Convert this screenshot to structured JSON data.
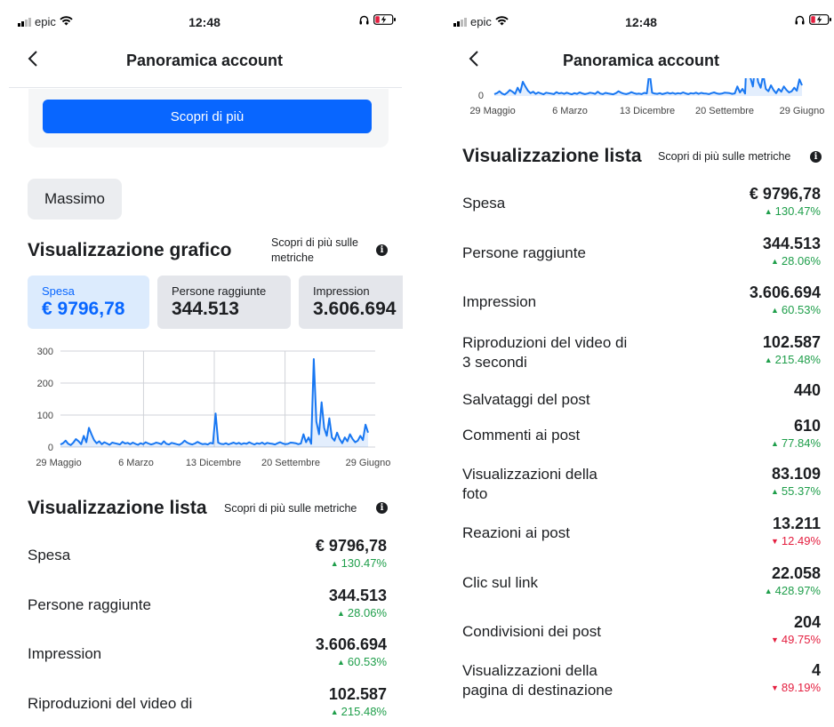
{
  "status": {
    "carrier": "epic",
    "time": "12:48"
  },
  "nav": {
    "title": "Panoramica account"
  },
  "cta": {
    "label": "Scopri di più"
  },
  "filter_chip": "Massimo",
  "graph_section": {
    "title": "Visualizzazione grafico",
    "metrics_link": "Scopri di più sulle metriche",
    "tabs": [
      {
        "label": "Spesa",
        "value": "€ 9796,78"
      },
      {
        "label": "Persone raggiunte",
        "value": "344.513"
      },
      {
        "label": "Impression",
        "value": "3.606.694"
      }
    ]
  },
  "list_section": {
    "title": "Visualizzazione lista",
    "metrics_link": "Scopri di più sulle metriche"
  },
  "metrics": [
    {
      "label": "Spesa",
      "value": "€ 9796,78",
      "delta": "130.47%",
      "trend": "up"
    },
    {
      "label": "Persone raggiunte",
      "value": "344.513",
      "delta": "28.06%",
      "trend": "up"
    },
    {
      "label": "Impression",
      "value": "3.606.694",
      "delta": "60.53%",
      "trend": "up"
    },
    {
      "label": "Riproduzioni del video di 3 secondi",
      "label_line1": "Riproduzioni del video di",
      "label_line2": "3 secondi",
      "value": "102.587",
      "delta": "215.48%",
      "trend": "up"
    },
    {
      "label": "Salvataggi del post",
      "value": "440",
      "delta": "",
      "trend": "none"
    },
    {
      "label": "Commenti ai post",
      "value": "610",
      "delta": "77.84%",
      "trend": "up"
    },
    {
      "label": "Visualizzazioni della foto",
      "label_line1": "Visualizzazioni della",
      "label_line2": "foto",
      "value": "83.109",
      "delta": "55.37%",
      "trend": "up"
    },
    {
      "label": "Reazioni ai post",
      "value": "13.211",
      "delta": "12.49%",
      "trend": "down"
    },
    {
      "label": "Clic sul link",
      "value": "22.058",
      "delta": "428.97%",
      "trend": "up"
    },
    {
      "label": "Condivisioni dei post",
      "value": "204",
      "delta": "49.75%",
      "trend": "down"
    },
    {
      "label": "Visualizzazioni della pagina di destinazione",
      "label_line1": "Visualizzazioni della",
      "label_line2": "pagina di destinazione",
      "value": "4",
      "delta": "89.19%",
      "trend": "down"
    }
  ],
  "chart_data": {
    "type": "line",
    "title": "Spesa",
    "x_tick_labels": [
      "29 Maggio",
      "6 Marzo",
      "13 Dicembre",
      "20 Settembre",
      "29 Giugno"
    ],
    "y_ticks": [
      0,
      100,
      200,
      300
    ],
    "ylim": [
      0,
      300
    ],
    "peaks": [
      {
        "near": "29 Maggio",
        "approx": [
          10,
          18,
          60,
          5,
          30,
          15
        ]
      },
      {
        "near": "13 Dicembre",
        "approx": [
          105
        ]
      },
      {
        "near": "20 Settembre",
        "approx": [
          275,
          40,
          140,
          80
        ]
      },
      {
        "near": "29 Giugno",
        "approx": [
          70,
          45
        ]
      }
    ],
    "series": [
      {
        "name": "Spesa",
        "values": [
          8,
          12,
          20,
          10,
          6,
          14,
          25,
          18,
          9,
          35,
          15,
          60,
          40,
          22,
          12,
          18,
          9,
          15,
          11,
          7,
          14,
          12,
          10,
          8,
          16,
          11,
          13,
          9,
          14,
          10,
          7,
          12,
          9,
          15,
          11,
          8,
          10,
          14,
          12,
          9,
          18,
          10,
          8,
          13,
          11,
          9,
          7,
          12,
          20,
          14,
          10,
          8,
          11,
          16,
          12,
          9,
          10,
          8,
          13,
          11,
          105,
          14,
          10,
          9,
          12,
          8,
          11,
          14,
          10,
          13,
          9,
          12,
          10,
          15,
          11,
          8,
          12,
          10,
          14,
          9,
          13,
          11,
          10,
          8,
          12,
          15,
          11,
          9,
          10,
          14,
          13,
          12,
          9,
          11,
          40,
          15,
          30,
          10,
          275,
          80,
          40,
          140,
          60,
          35,
          90,
          30,
          20,
          45,
          25,
          12,
          30,
          18,
          40,
          25,
          15,
          20,
          35,
          22,
          70,
          45
        ]
      }
    ]
  }
}
